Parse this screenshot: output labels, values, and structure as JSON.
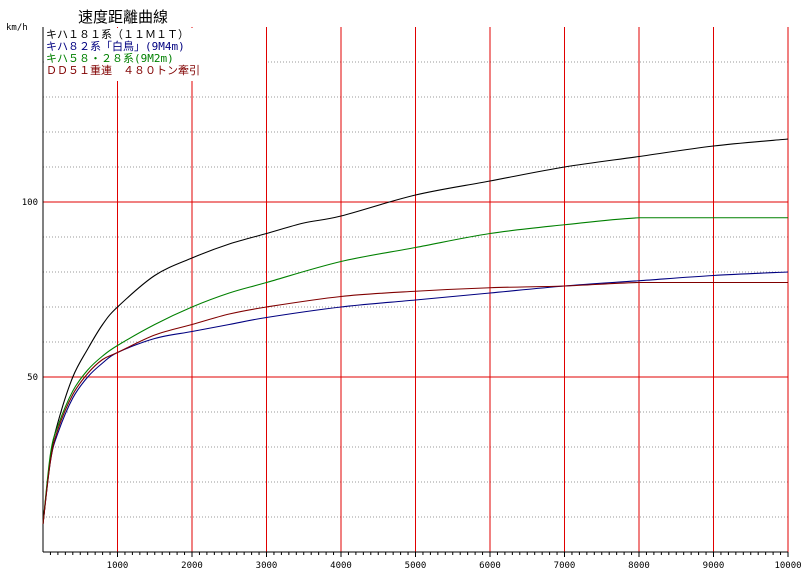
{
  "chart_data": {
    "type": "line",
    "title": "速度距離曲線",
    "ylabel": "km/h",
    "xlabel": "",
    "xlim": [
      0,
      10000
    ],
    "ylim": [
      0,
      150
    ],
    "grid": {
      "major_x": [
        1000,
        2000,
        3000,
        4000,
        5000,
        6000,
        7000,
        8000,
        9000,
        10000
      ],
      "major_y": [
        50,
        100
      ],
      "minor_y_step": 10
    },
    "x_ticks": [
      "1000",
      "2000",
      "3000",
      "4000",
      "5000",
      "6000",
      "7000",
      "8000",
      "9000",
      "10000"
    ],
    "y_ticks": [
      {
        "value": 50,
        "label": "50"
      },
      {
        "value": 100,
        "label": "100"
      }
    ],
    "legend_position": "top-left",
    "series": [
      {
        "name": "キハ１８１系（１１Ｍ１Ｔ）",
        "color": "#000000",
        "x": [
          0,
          100,
          200,
          400,
          600,
          800,
          1000,
          1500,
          2000,
          2500,
          3000,
          3500,
          4000,
          5000,
          6000,
          7000,
          8000,
          9000,
          10000
        ],
        "y": [
          8,
          27,
          37,
          50,
          58,
          65,
          70,
          79,
          84,
          88,
          91,
          94,
          96,
          102,
          106,
          110,
          113,
          116,
          118
        ]
      },
      {
        "name": "キハ８２系「白鳥」(9M4m)",
        "color": "#000080",
        "x": [
          0,
          100,
          200,
          400,
          600,
          800,
          1000,
          1500,
          2000,
          2500,
          3000,
          4000,
          5000,
          6000,
          7000,
          8000,
          9000,
          10000
        ],
        "y": [
          8,
          26,
          34,
          44,
          50,
          54,
          57,
          61,
          63,
          65,
          67,
          70,
          72,
          74,
          76,
          77.5,
          79,
          80
        ]
      },
      {
        "name": "キハ５８・２８系(9M2m)",
        "color": "#008000",
        "x": [
          0,
          100,
          200,
          400,
          600,
          800,
          1000,
          1500,
          2000,
          2500,
          3000,
          4000,
          5000,
          6000,
          7000,
          8000,
          9000,
          10000
        ],
        "y": [
          8,
          28,
          36,
          46,
          52,
          56,
          59,
          65,
          70,
          74,
          77,
          83,
          87,
          91,
          93.5,
          95.5,
          95.5,
          95.5
        ]
      },
      {
        "name": "ＤＤ５１重連　４８０トン牽引",
        "color": "#800000",
        "x": [
          0,
          100,
          200,
          400,
          600,
          800,
          1000,
          1500,
          2000,
          2500,
          3000,
          4000,
          5000,
          6000,
          7000,
          8000,
          9000,
          10000
        ],
        "y": [
          8,
          26,
          35,
          45,
          51,
          55,
          57,
          62,
          65,
          68,
          70,
          73,
          74.5,
          75.5,
          76,
          77,
          77,
          77
        ]
      }
    ]
  }
}
